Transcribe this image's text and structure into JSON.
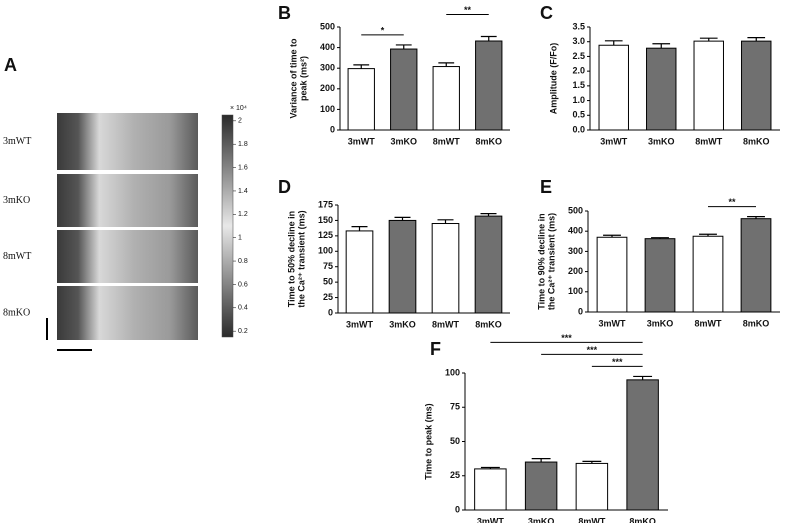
{
  "image_panel": {
    "panel": "A",
    "rows": [
      "3mWT",
      "3mKO",
      "8mWT",
      "8mKO"
    ],
    "colorbar_exponent": "× 10⁴",
    "clim": [
      0.15,
      2.05
    ],
    "cticks": [
      0.2,
      0.4,
      0.6,
      0.8,
      1,
      1.2,
      1.4,
      1.6,
      1.8,
      2
    ]
  },
  "chart_data": [
    {
      "type": "bar",
      "panel": "B",
      "ylabel": [
        "Variance of time to",
        "peak (ms²)"
      ],
      "categories": [
        "3mWT",
        "3mKO",
        "8mWT",
        "8mKO"
      ],
      "values": [
        298,
        393,
        308,
        432
      ],
      "errors": [
        18,
        20,
        18,
        22
      ],
      "colors": [
        "#ffffff",
        "#707070",
        "#ffffff",
        "#707070"
      ],
      "ylim": [
        0,
        500
      ],
      "yticks": [
        0,
        100,
        200,
        300,
        400,
        500
      ],
      "annotations": [
        {
          "text": "*",
          "between": [
            "3mWT",
            "3mKO"
          ]
        },
        {
          "text": "**",
          "between": [
            "8mWT",
            "8mKO"
          ]
        }
      ]
    },
    {
      "type": "bar",
      "panel": "C",
      "ylabel": [
        "Amplitude (F/Fo)"
      ],
      "categories": [
        "3mWT",
        "3mKO",
        "8mWT",
        "8mKO"
      ],
      "values": [
        2.88,
        2.78,
        3.02,
        3.02
      ],
      "errors": [
        0.15,
        0.15,
        0.1,
        0.12
      ],
      "colors": [
        "#ffffff",
        "#707070",
        "#ffffff",
        "#707070"
      ],
      "ylim": [
        0,
        3.5
      ],
      "yticks": [
        {
          "value": 0,
          "label": "0.0"
        },
        0.5,
        {
          "value": 1,
          "label": "1.0"
        },
        1.5,
        {
          "value": 2,
          "label": "2.0"
        },
        2.5,
        {
          "value": 3,
          "label": "3.0"
        },
        3.5
      ],
      "annotations": []
    },
    {
      "type": "bar",
      "panel": "D",
      "ylabel": [
        "Time to 50% decline in",
        "the Ca²⁺ transient (ms)"
      ],
      "categories": [
        "3mWT",
        "3mKO",
        "8mWT",
        "8mKO"
      ],
      "values": [
        133,
        150,
        145,
        157
      ],
      "errors": [
        7,
        5,
        6,
        4
      ],
      "colors": [
        "#ffffff",
        "#707070",
        "#ffffff",
        "#707070"
      ],
      "ylim": [
        0,
        175
      ],
      "yticks": [
        0,
        25,
        50,
        75,
        100,
        125,
        150,
        175
      ],
      "annotations": []
    },
    {
      "type": "bar",
      "panel": "E",
      "ylabel": [
        "Time to 90% decline in",
        "the Ca²⁺ transient (ms)"
      ],
      "categories": [
        "3mWT",
        "3mKO",
        "8mWT",
        "8mKO"
      ],
      "values": [
        370,
        363,
        375,
        462
      ],
      "errors": [
        10,
        5,
        10,
        10
      ],
      "colors": [
        "#ffffff",
        "#707070",
        "#ffffff",
        "#707070"
      ],
      "ylim": [
        0,
        500
      ],
      "yticks": [
        0,
        100,
        200,
        300,
        400,
        500
      ],
      "annotations": [
        {
          "text": "**",
          "between": [
            "8mWT",
            "8mKO"
          ]
        }
      ]
    },
    {
      "type": "bar",
      "panel": "F",
      "ylabel": [
        "Time to peak (ms)"
      ],
      "categories": [
        "3mWT",
        "3mKO",
        "8mWT",
        "8mKO"
      ],
      "values": [
        30,
        35,
        34,
        95
      ],
      "errors": [
        1,
        2.5,
        1.5,
        2.5
      ],
      "colors": [
        "#ffffff",
        "#707070",
        "#ffffff",
        "#707070"
      ],
      "ylim": [
        0,
        100
      ],
      "yticks": [
        0,
        25,
        50,
        75,
        100
      ],
      "annotations": [
        {
          "text": "***",
          "between": [
            "8mWT",
            "8mKO"
          ]
        },
        {
          "text": "***",
          "between": [
            "3mKO",
            "8mKO"
          ]
        },
        {
          "text": "***",
          "between": [
            "3mWT",
            "8mKO"
          ]
        }
      ]
    }
  ]
}
